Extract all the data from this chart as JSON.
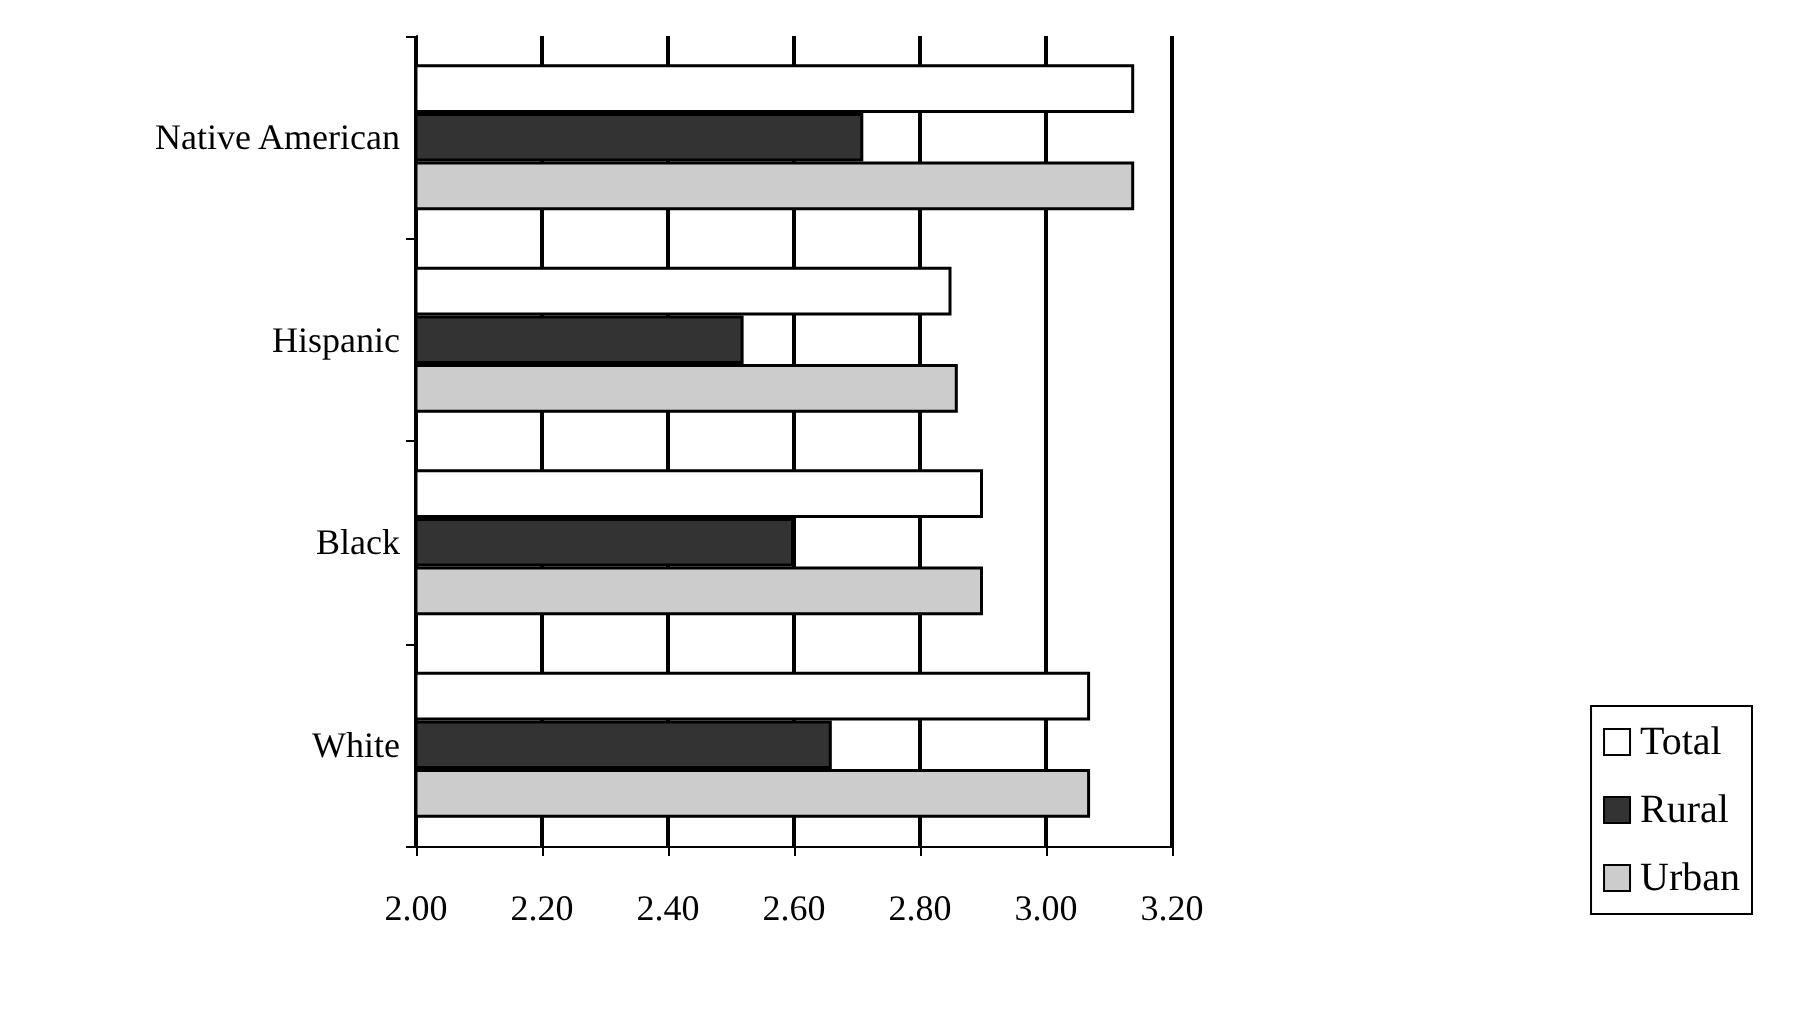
{
  "chart_data": {
    "type": "bar",
    "orientation": "horizontal",
    "categories": [
      "Native American",
      "Hispanic",
      "Black",
      "White"
    ],
    "series": [
      {
        "name": "Total",
        "color": "#ffffff",
        "values": [
          3.14,
          2.85,
          2.9,
          3.07
        ]
      },
      {
        "name": "Rural",
        "color": "#333333",
        "values": [
          2.71,
          2.52,
          2.6,
          2.66
        ]
      },
      {
        "name": "Urban",
        "color": "#cccccc",
        "values": [
          3.14,
          2.86,
          2.9,
          3.07
        ]
      }
    ],
    "xlim": [
      2,
      3.2
    ],
    "xticks": [
      {
        "value": 2,
        "label": "2.00"
      },
      {
        "value": 2.2,
        "label": "2.20"
      },
      {
        "value": 2.4,
        "label": "2.40"
      },
      {
        "value": 2.6,
        "label": "2.60"
      },
      {
        "value": 2.8,
        "label": "2.80"
      },
      {
        "value": 3,
        "label": "3.00"
      },
      {
        "value": 3.2,
        "label": "3.20"
      }
    ],
    "grid": "x",
    "legend": "right"
  }
}
